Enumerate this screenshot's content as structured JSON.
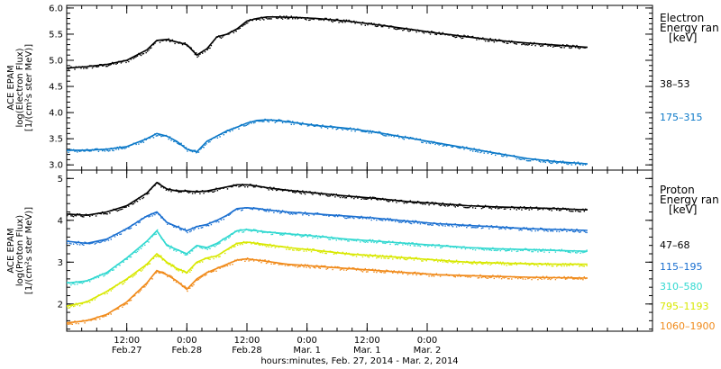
{
  "chart_data": [
    {
      "type": "scatter",
      "panel": "electron",
      "ylabel": [
        "ACE EPAM",
        "log(Electron Flux)",
        "[1/(cm²s ster MeV)]"
      ],
      "ylim": [
        2.9,
        6.05
      ],
      "yticks": [
        3.0,
        3.5,
        4.0,
        4.5,
        5.0,
        5.5,
        6.0
      ],
      "ytick_labels": [
        "3.0",
        "3.5",
        "4.0",
        "4.5",
        "5.0",
        "5.5",
        "6.0"
      ],
      "legend_title": [
        "Electron",
        "Energy ran",
        "[keV]"
      ],
      "series": [
        {
          "name": "38–53",
          "color": "#000000",
          "x": [
            0,
            4,
            8,
            12,
            16,
            18,
            20,
            22,
            24,
            26,
            28,
            30,
            32,
            34,
            36,
            38,
            40,
            42,
            46,
            50,
            56,
            62,
            68,
            74,
            80,
            86,
            92,
            98,
            104
          ],
          "y": [
            4.85,
            4.88,
            4.92,
            5.0,
            5.2,
            5.38,
            5.4,
            5.35,
            5.3,
            5.1,
            5.22,
            5.45,
            5.5,
            5.6,
            5.75,
            5.8,
            5.83,
            5.83,
            5.82,
            5.8,
            5.75,
            5.68,
            5.6,
            5.52,
            5.45,
            5.38,
            5.33,
            5.29,
            5.25
          ]
        },
        {
          "name": "175–315",
          "color": "#0a78c8",
          "x": [
            0,
            4,
            8,
            12,
            16,
            18,
            20,
            22,
            24,
            26,
            28,
            30,
            32,
            34,
            36,
            38,
            40,
            42,
            46,
            50,
            56,
            62,
            68,
            74,
            80,
            86,
            92,
            98,
            104
          ],
          "y": [
            3.28,
            3.28,
            3.3,
            3.35,
            3.5,
            3.6,
            3.55,
            3.45,
            3.3,
            3.25,
            3.45,
            3.55,
            3.65,
            3.72,
            3.8,
            3.85,
            3.86,
            3.85,
            3.8,
            3.75,
            3.7,
            3.62,
            3.52,
            3.42,
            3.32,
            3.22,
            3.12,
            3.06,
            3.02
          ]
        }
      ]
    },
    {
      "type": "scatter",
      "panel": "proton",
      "ylabel": [
        "ACE EPAM",
        "log(Proton Flux)",
        "[1/(cm²s ster MeV)]"
      ],
      "ylim": [
        1.35,
        5.2
      ],
      "yticks": [
        2,
        3,
        4,
        5
      ],
      "ytick_labels": [
        "2",
        "3",
        "4",
        "5"
      ],
      "legend_title": [
        "Proton",
        "Energy ran",
        "[keV]"
      ],
      "series": [
        {
          "name": "47–68",
          "color": "#000000",
          "x": [
            0,
            4,
            8,
            12,
            16,
            18,
            20,
            22,
            24,
            26,
            28,
            30,
            32,
            34,
            36,
            38,
            40,
            44,
            50,
            56,
            62,
            68,
            74,
            80,
            86,
            92,
            98,
            104
          ],
          "y": [
            4.15,
            4.12,
            4.2,
            4.35,
            4.65,
            4.9,
            4.75,
            4.7,
            4.7,
            4.68,
            4.7,
            4.75,
            4.8,
            4.85,
            4.85,
            4.82,
            4.78,
            4.72,
            4.65,
            4.58,
            4.52,
            4.45,
            4.4,
            4.35,
            4.32,
            4.3,
            4.28,
            4.25
          ]
        },
        {
          "name": "115–195",
          "color": "#1a6fd0",
          "x": [
            0,
            4,
            8,
            12,
            16,
            18,
            20,
            22,
            24,
            26,
            28,
            30,
            32,
            34,
            36,
            38,
            40,
            44,
            50,
            56,
            62,
            68,
            74,
            80,
            86,
            92,
            98,
            104
          ],
          "y": [
            3.5,
            3.45,
            3.55,
            3.8,
            4.1,
            4.2,
            3.95,
            3.85,
            3.75,
            3.85,
            3.9,
            4.0,
            4.12,
            4.28,
            4.3,
            4.28,
            4.25,
            4.2,
            4.15,
            4.1,
            4.05,
            3.98,
            3.92,
            3.88,
            3.84,
            3.8,
            3.78,
            3.76
          ]
        },
        {
          "name": "310–580",
          "color": "#30d8d0",
          "x": [
            0,
            4,
            8,
            12,
            16,
            18,
            20,
            22,
            24,
            26,
            28,
            30,
            32,
            34,
            36,
            38,
            40,
            44,
            50,
            56,
            62,
            68,
            74,
            80,
            86,
            92,
            98,
            104
          ],
          "y": [
            2.5,
            2.55,
            2.75,
            3.1,
            3.5,
            3.75,
            3.4,
            3.3,
            3.2,
            3.4,
            3.35,
            3.45,
            3.6,
            3.75,
            3.78,
            3.75,
            3.72,
            3.68,
            3.62,
            3.55,
            3.5,
            3.45,
            3.4,
            3.35,
            3.32,
            3.3,
            3.28,
            3.26
          ]
        },
        {
          "name": "795–1193",
          "color": "#d8e800",
          "x": [
            0,
            4,
            8,
            12,
            16,
            18,
            20,
            22,
            24,
            26,
            28,
            30,
            32,
            34,
            36,
            38,
            40,
            44,
            50,
            56,
            62,
            68,
            74,
            80,
            86,
            92,
            98,
            104
          ],
          "y": [
            1.95,
            2.05,
            2.3,
            2.6,
            2.95,
            3.2,
            3.0,
            2.85,
            2.75,
            3.0,
            3.1,
            3.15,
            3.3,
            3.45,
            3.48,
            3.45,
            3.42,
            3.35,
            3.28,
            3.2,
            3.15,
            3.1,
            3.05,
            3.0,
            2.98,
            2.96,
            2.95,
            2.95
          ]
        },
        {
          "name": "1060–1900",
          "color": "#f08a1a",
          "x": [
            0,
            4,
            8,
            12,
            16,
            18,
            20,
            22,
            24,
            26,
            28,
            30,
            32,
            34,
            36,
            38,
            40,
            44,
            50,
            56,
            62,
            68,
            74,
            80,
            86,
            92,
            98,
            104
          ],
          "y": [
            1.55,
            1.6,
            1.75,
            2.05,
            2.5,
            2.8,
            2.7,
            2.55,
            2.35,
            2.6,
            2.75,
            2.85,
            2.95,
            3.05,
            3.08,
            3.05,
            3.02,
            2.95,
            2.9,
            2.85,
            2.8,
            2.75,
            2.7,
            2.68,
            2.66,
            2.64,
            2.63,
            2.62
          ]
        }
      ]
    }
  ],
  "xaxis": {
    "label": "hours:minutes, Feb. 27, 2014 - Mar.  2, 2014",
    "range": [
      0,
      117
    ],
    "ticks": [
      {
        "x": 12,
        "time": "12:00",
        "date": "Feb.27"
      },
      {
        "x": 24,
        "time": "0:00",
        "date": "Feb.28"
      },
      {
        "x": 36,
        "time": "12:00",
        "date": "Feb.28"
      },
      {
        "x": 48,
        "time": "0:00",
        "date": "Mar. 1"
      },
      {
        "x": 60,
        "time": "12:00",
        "date": "Mar. 1"
      },
      {
        "x": 72,
        "time": "0:00",
        "date": "Mar. 2"
      }
    ],
    "minor_step": 3
  }
}
